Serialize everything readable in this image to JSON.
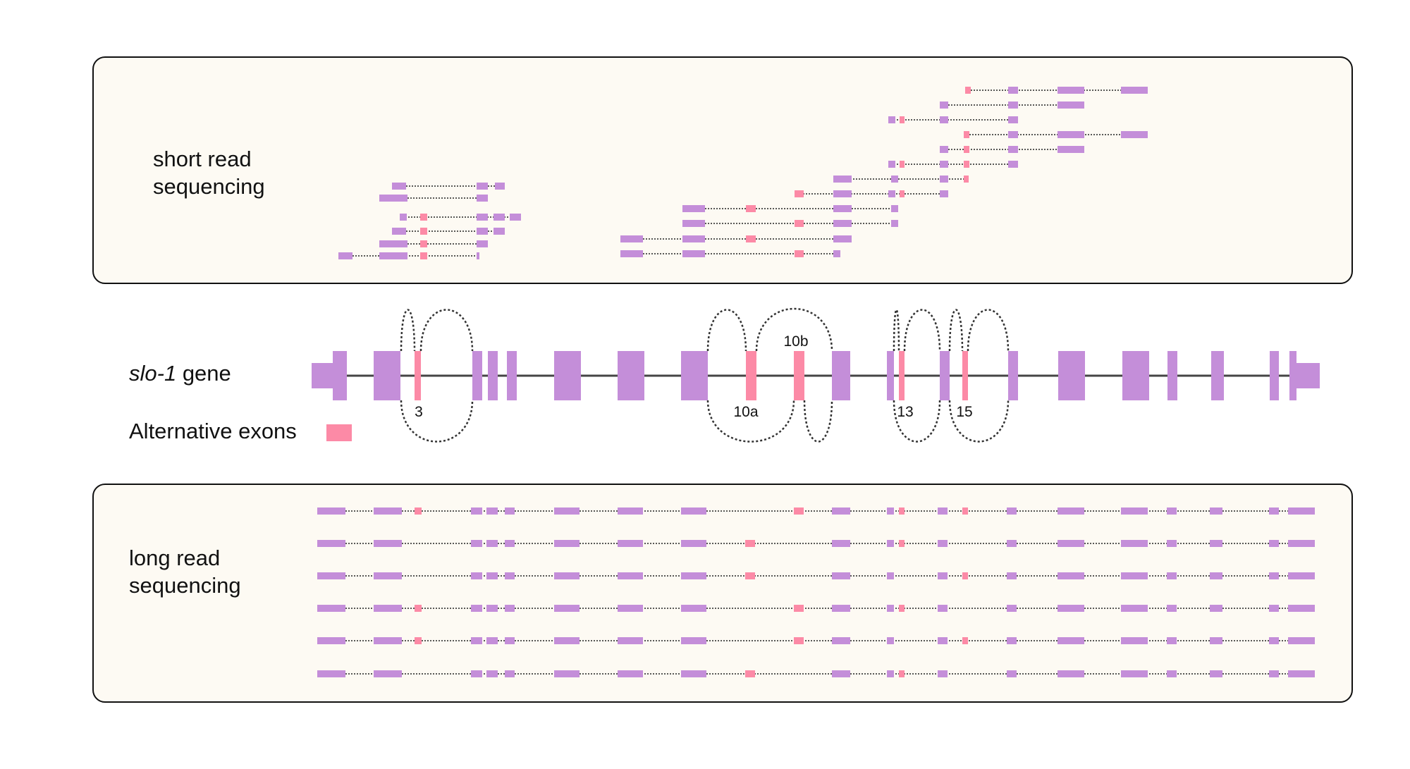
{
  "colors": {
    "constitutive_exon": "#c48ed9",
    "alternative_exon": "#fc8aa6",
    "intron_line": "#444444",
    "panel_background": "#fdfaf3"
  },
  "short_read_panel": {
    "label": "short read\nsequencing"
  },
  "gene": {
    "name": "slo-1",
    "suffix": " gene"
  },
  "legend": {
    "alternative_exons_label": "Alternative exons"
  },
  "exon_labels": [
    "3",
    "10a",
    "10b",
    "13",
    "15"
  ],
  "long_read_panel": {
    "label": "long read\nsequencing"
  }
}
